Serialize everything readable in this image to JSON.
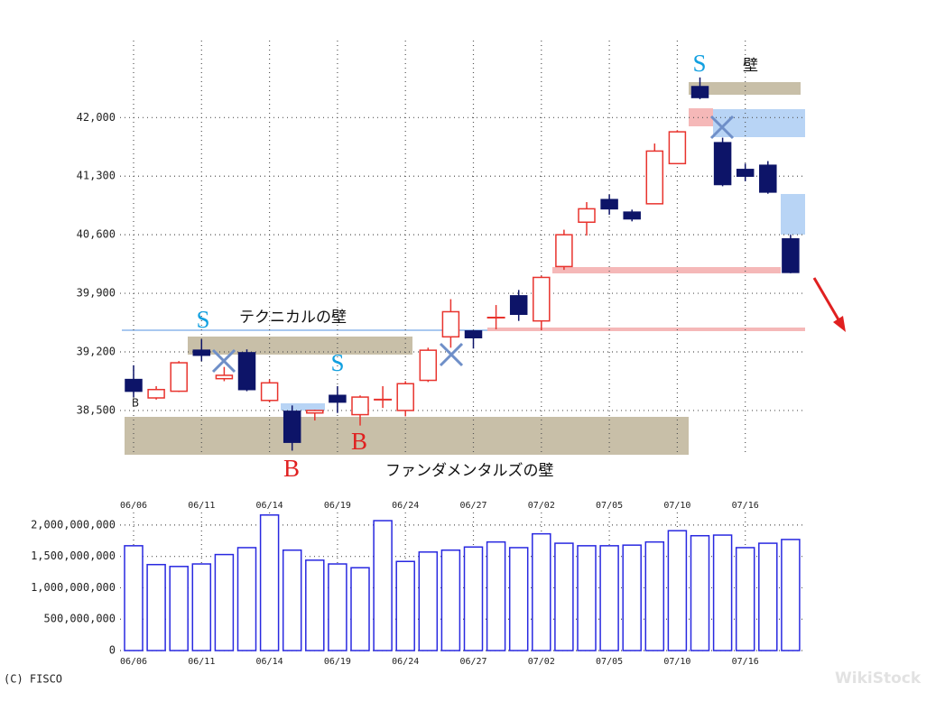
{
  "chart_data": [
    {
      "type": "candlestick",
      "categories": [
        "06/06",
        null,
        null,
        "06/11",
        null,
        null,
        "06/14",
        null,
        null,
        "06/19",
        null,
        null,
        "06/24",
        null,
        null,
        "06/27",
        null,
        null,
        "07/02",
        null,
        null,
        "07/05",
        null,
        null,
        "07/10",
        null,
        null,
        "07/16",
        null,
        null
      ],
      "open": [
        38870,
        38650,
        38730,
        39220,
        38880,
        39190,
        38620,
        38490,
        38470,
        38680,
        38450,
        38630,
        38500,
        38860,
        39380,
        39450,
        39610,
        39870,
        39570,
        40220,
        40750,
        41020,
        40870,
        40970,
        41450,
        42370,
        41700,
        41380,
        41430,
        40550
      ],
      "high": [
        39040,
        38790,
        39090,
        39350,
        39020,
        39230,
        38870,
        38560,
        38510,
        38790,
        38680,
        38790,
        38850,
        39250,
        39830,
        39450,
        39760,
        39940,
        40110,
        40660,
        40990,
        41080,
        40900,
        41690,
        41850,
        42480,
        41760,
        41450,
        41480,
        40600
      ],
      "low": [
        38660,
        38630,
        38720,
        39090,
        38850,
        38730,
        38600,
        38020,
        38380,
        38470,
        38320,
        38530,
        38430,
        38840,
        39250,
        39240,
        39470,
        39570,
        39460,
        40180,
        40590,
        40840,
        40760,
        40970,
        41450,
        42220,
        41180,
        41240,
        41090,
        40140
      ],
      "close": [
        38730,
        38750,
        39070,
        39160,
        38920,
        38750,
        38830,
        38120,
        38500,
        38600,
        38660,
        38630,
        38820,
        39220,
        39680,
        39370,
        39610,
        39650,
        40090,
        40600,
        40910,
        40910,
        40790,
        41600,
        41830,
        42240,
        41200,
        41300,
        41110,
        40150
      ],
      "up_color": "#e8332d",
      "down_color": "#0d1468",
      "ylim": [
        37960,
        42920
      ],
      "yticks": [
        {
          "value": 38500,
          "label": "38,500"
        },
        {
          "value": 39200,
          "label": "39,200"
        },
        {
          "value": 39900,
          "label": "39,900"
        },
        {
          "value": 40600,
          "label": "40,600"
        },
        {
          "value": 41300,
          "label": "41,300"
        },
        {
          "value": 42000,
          "label": "42,000"
        }
      ],
      "grid": true,
      "annotations": [
        "S",
        "S",
        "S",
        "B",
        "B",
        "B",
        "テクニカルの壁",
        "ファンダメンタルズの壁",
        "壁"
      ]
    },
    {
      "type": "bar",
      "categories": [
        "06/06",
        null,
        null,
        "06/11",
        null,
        null,
        "06/14",
        null,
        null,
        "06/19",
        null,
        null,
        "06/24",
        null,
        null,
        "06/27",
        null,
        null,
        "07/02",
        null,
        null,
        "07/05",
        null,
        null,
        "07/10",
        null,
        null,
        "07/16",
        null,
        null
      ],
      "values": [
        1670000000,
        1370000000,
        1340000000,
        1380000000,
        1530000000,
        1640000000,
        2160000000,
        1600000000,
        1440000000,
        1380000000,
        1320000000,
        2070000000,
        1420000000,
        1570000000,
        1600000000,
        1650000000,
        1730000000,
        1640000000,
        1860000000,
        1710000000,
        1670000000,
        1670000000,
        1680000000,
        1730000000,
        1910000000,
        1830000000,
        1840000000,
        1640000000,
        1710000000,
        1770000000
      ],
      "color": "#2828e0",
      "ylim": [
        0,
        2200000000
      ],
      "yticks": [
        0,
        {
          "value": 500000000,
          "label": "500,000,000"
        },
        {
          "value": 1000000000,
          "label": "1,000,000,000"
        },
        {
          "value": 1500000000,
          "label": "1,500,000,000"
        },
        {
          "value": 2000000000,
          "label": "2,000,000,000"
        }
      ],
      "grid": true
    }
  ],
  "footer": "(C) FISCO",
  "watermark": "WikiStock"
}
